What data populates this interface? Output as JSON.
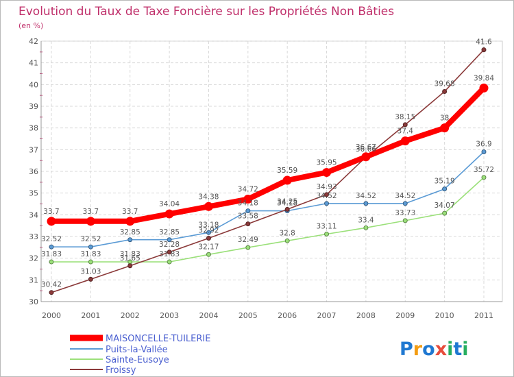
{
  "chart_data": {
    "type": "line",
    "title": "Evolution du Taux de Taxe Foncière sur les Propriétés Non Bâties",
    "subtitle": "(en %)",
    "xlabel": "",
    "ylabel": "",
    "x": [
      "2000",
      "2001",
      "2002",
      "2003",
      "2004",
      "2005",
      "2006",
      "2007",
      "2008",
      "2009",
      "2010",
      "2011"
    ],
    "ylim": [
      30,
      42
    ],
    "yticks": [
      "30",
      "31",
      "32",
      "33",
      "34",
      "35",
      "36",
      "37",
      "38",
      "39",
      "40",
      "41",
      "42"
    ],
    "grid": true,
    "legend_position": "bottom-left",
    "series": [
      {
        "name": "MAISONCELLE-TUILERIE",
        "color": "#ff0000",
        "values": [
          33.7,
          33.7,
          33.7,
          34.04,
          34.38,
          34.72,
          35.59,
          35.95,
          36.67,
          37.4,
          38,
          39.84
        ],
        "labels": [
          "33.7",
          "33.7",
          "33.7",
          "34.04",
          "34.38",
          "34.72",
          "35.59",
          "35.95",
          "36.67",
          "37.4",
          "38",
          "39.84"
        ]
      },
      {
        "name": "Puits-la-Vallée",
        "color": "#5b9bd5",
        "values": [
          32.52,
          32.52,
          32.85,
          32.85,
          33.18,
          34.18,
          34.18,
          34.52,
          34.52,
          34.52,
          35.19,
          36.9
        ],
        "labels": [
          "32.52",
          "32.52",
          "32.85",
          "32.85",
          "33.18",
          "34.18",
          "34.18",
          "34.52",
          "34.52",
          "34.52",
          "35.19",
          "36.9"
        ]
      },
      {
        "name": "Sainte-Eusoye",
        "color": "#9be07a",
        "values": [
          31.83,
          31.83,
          31.83,
          31.83,
          32.17,
          32.49,
          32.8,
          33.11,
          33.4,
          33.73,
          34.07,
          35.72
        ],
        "labels": [
          "31.83",
          "31.83",
          "31.83",
          "31.83",
          "32.17",
          "32.49",
          "32.8",
          "33.11",
          "33.4",
          "33.73",
          "34.07",
          "35.72"
        ]
      },
      {
        "name": "Froissy",
        "color": "#8b3a3a",
        "values": [
          30.42,
          31.03,
          31.65,
          32.28,
          32.92,
          33.58,
          34.25,
          34.93,
          36.66,
          38.15,
          39.68,
          41.6
        ],
        "labels": [
          "30.42",
          "31.03",
          "31.65",
          "32.28",
          "32.92",
          "33.58",
          "34.25",
          "34.93",
          "36.66",
          "38.15",
          "39.68",
          "41.6"
        ]
      }
    ]
  },
  "brand": {
    "name": "Proxiti",
    "letters": [
      "P",
      "r",
      "o",
      "x",
      "i",
      "t",
      "i"
    ],
    "letter_colors": [
      "#1f78d1",
      "#f39c12",
      "#1f78d1",
      "#e74c3c",
      "#27ae60",
      "#1f78d1",
      "#27ae60"
    ]
  }
}
